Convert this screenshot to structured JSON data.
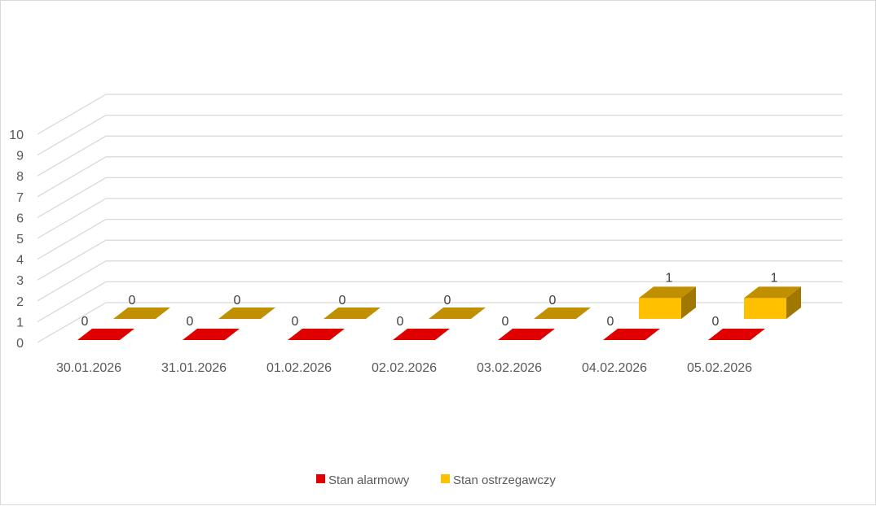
{
  "chart_data": {
    "type": "bar",
    "title": "",
    "xlabel": "",
    "ylabel": "",
    "ylim": [
      0,
      10
    ],
    "yticks": [
      "0",
      "1",
      "2",
      "3",
      "4",
      "5",
      "6",
      "7",
      "8",
      "9",
      "10"
    ],
    "categories": [
      "30.01.2026",
      "31.01.2026",
      "01.02.2026",
      "02.02.2026",
      "03.02.2026",
      "04.02.2026",
      "05.02.2026"
    ],
    "series": [
      {
        "name": "Stan alarmowy",
        "values": [
          0,
          0,
          0,
          0,
          0,
          0,
          0
        ],
        "color": "#e00000",
        "top_color": "#c00000",
        "side_color": "#a00000"
      },
      {
        "name": "Stan ostrzegawczy",
        "values": [
          0,
          0,
          0,
          0,
          0,
          1,
          1
        ],
        "color": "#ffc000",
        "top_color": "#c09000",
        "side_color": "#a07800"
      }
    ],
    "legend": "bottom",
    "grid": true
  }
}
